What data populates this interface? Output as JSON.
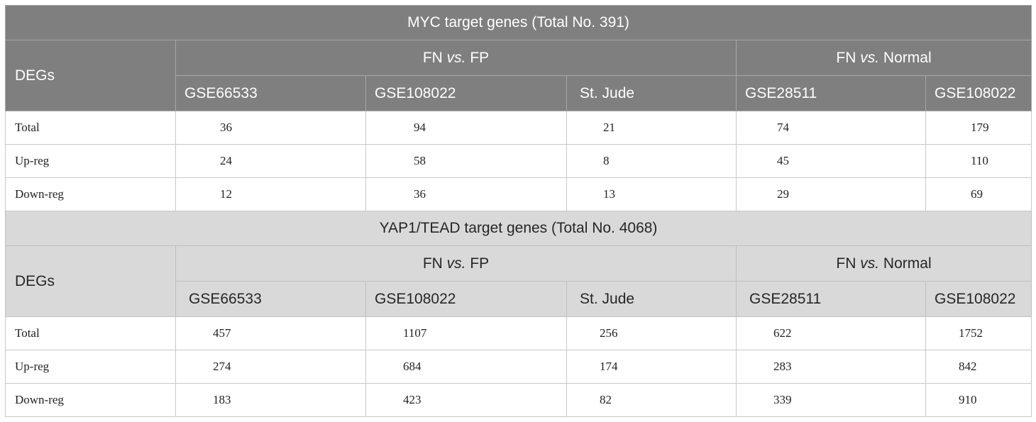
{
  "blocks": [
    {
      "title": "MYC target genes (Total No. 391)",
      "row_header": "DEGs",
      "groups": [
        {
          "pre": "FN ",
          "vs": "vs.",
          "post": " FP"
        },
        {
          "pre": "FN ",
          "vs": "vs.",
          "post": " Normal"
        }
      ],
      "datasets": [
        "GSE66533",
        "GSE108022",
        "St. Jude",
        "GSE28511",
        "GSE108022"
      ],
      "rows": [
        {
          "label": "Total",
          "values": [
            "36",
            "94",
            "21",
            "74",
            "179"
          ]
        },
        {
          "label": "Up-reg",
          "values": [
            "24",
            "58",
            "8",
            "45",
            "110"
          ]
        },
        {
          "label": "Down-reg",
          "values": [
            "12",
            "36",
            "13",
            "29",
            "69"
          ]
        }
      ]
    },
    {
      "title": "YAP1/TEAD target genes (Total No. 4068)",
      "row_header": "DEGs",
      "groups": [
        {
          "pre": "FN ",
          "vs": "vs.",
          "post": " FP"
        },
        {
          "pre": "FN ",
          "vs": "vs.",
          "post": " Normal"
        }
      ],
      "datasets": [
        "GSE66533",
        "GSE108022",
        "St. Jude",
        "GSE28511",
        "GSE108022"
      ],
      "rows": [
        {
          "label": "Total",
          "values": [
            "457",
            "1107",
            "256",
            "622",
            "1752"
          ]
        },
        {
          "label": "Up-reg",
          "values": [
            "274",
            "684",
            "174",
            "283",
            "842"
          ]
        },
        {
          "label": "Down-reg",
          "values": [
            "183",
            "423",
            "82",
            "339",
            "910"
          ]
        }
      ]
    }
  ],
  "colors": {
    "header_dark": "#7f7f7f",
    "header_light": "#d9d9d9",
    "border": "#c8c8c8"
  }
}
